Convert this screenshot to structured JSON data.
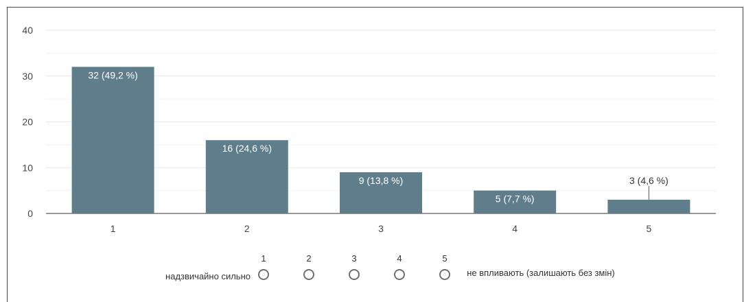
{
  "chart_data": {
    "type": "bar",
    "categories": [
      "1",
      "2",
      "3",
      "4",
      "5"
    ],
    "values": [
      32,
      16,
      9,
      5,
      3
    ],
    "data_labels": [
      "32 (49,2 %)",
      "16 (24,6 %)",
      "9 (13,8 %)",
      "5 (7,7 %)",
      "3 (4,6 %)"
    ],
    "ylim": [
      0,
      40
    ],
    "yticks": [
      "0",
      "10",
      "20",
      "30",
      "40"
    ],
    "grid": true,
    "bar_color": "#607d8b"
  },
  "scale": {
    "options": [
      "1",
      "2",
      "3",
      "4",
      "5"
    ],
    "left_label": "надзвичайно сильно",
    "right_label": "не впливають (залишають без змін)"
  }
}
